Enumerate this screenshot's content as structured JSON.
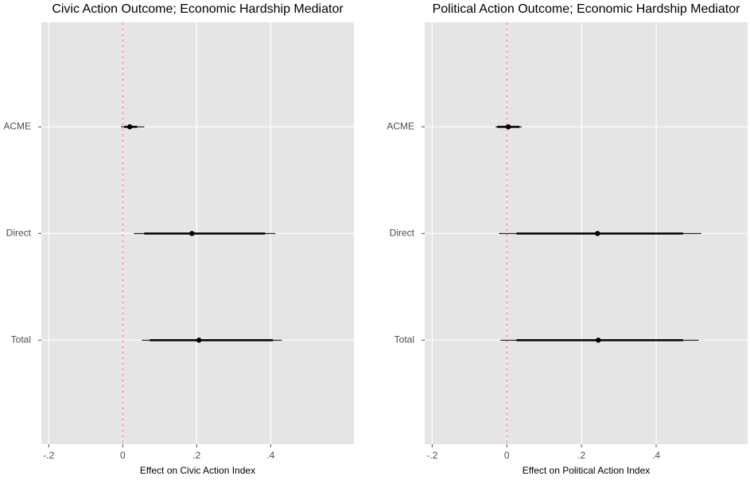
{
  "chart_data": [
    {
      "type": "dotwhisker",
      "title": "Civic Action Outcome; Economic Hardship Mediator",
      "x_label": "Effect on Civic Action Index",
      "categories": [
        "ACME",
        "Direct",
        "Total"
      ],
      "values": [
        0.019,
        0.187,
        0.206
      ],
      "inner_low": [
        0.004,
        0.058,
        0.073
      ],
      "inner_high": [
        0.039,
        0.385,
        0.406
      ],
      "outer_low": [
        -0.004,
        0.03,
        0.052
      ],
      "outer_high": [
        0.058,
        0.413,
        0.43
      ],
      "color": "#000000",
      "ref_line": 0,
      "ref_color": "#f08080",
      "xlim": [
        -0.22,
        0.625
      ],
      "xticks": [
        {
          "value": -0.2,
          "label": "-.2"
        },
        0,
        {
          "value": 0.2,
          "label": ".2"
        },
        {
          "value": 0.4,
          "label": ".4"
        }
      ],
      "grid": true
    },
    {
      "type": "dotwhisker",
      "title": "Political Action Outcome; Economic Hardship Mediator",
      "x_label": "Effect on Political Action Index",
      "categories": [
        "ACME",
        "Direct",
        "Total"
      ],
      "values": [
        0.004,
        0.243,
        0.245
      ],
      "inner_low": [
        -0.026,
        0.026,
        0.026
      ],
      "inner_high": [
        0.034,
        0.472,
        0.472
      ],
      "outer_low": [
        -0.03,
        -0.021,
        -0.017
      ],
      "outer_high": [
        0.04,
        0.521,
        0.514
      ],
      "color": "#000000",
      "ref_line": 0,
      "ref_color": "#f08080",
      "xlim": [
        -0.22,
        0.645
      ],
      "xticks": [
        {
          "value": -0.2,
          "label": "-.2"
        },
        0,
        {
          "value": 0.2,
          "label": ".2"
        },
        {
          "value": 0.4,
          "label": ".4"
        }
      ],
      "grid": true
    }
  ]
}
